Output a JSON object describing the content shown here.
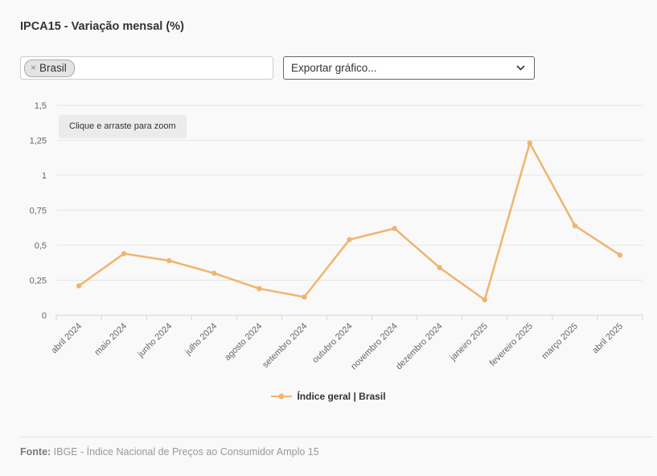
{
  "header": {
    "title": "IPCA15 - Variação mensal (%)"
  },
  "controls": {
    "territory_tag": {
      "label": "Brasil",
      "remove_symbol": "×"
    },
    "export_select": {
      "value": "Exportar gráfico..."
    }
  },
  "chart": {
    "zoom_hint": "Clique e arraste para zoom",
    "legend_label": "Índice geral | Brasil"
  },
  "chart_data": {
    "type": "line",
    "title": "IPCA15 - Variação mensal (%)",
    "categories": [
      "abril 2024",
      "maio 2024",
      "junho 2024",
      "julho 2024",
      "agosto 2024",
      "setembro 2024",
      "outubro 2024",
      "novembro 2024",
      "dezembro 2024",
      "janeiro 2025",
      "fevereiro 2025",
      "março 2025",
      "abril 2025"
    ],
    "series": [
      {
        "name": "Índice geral | Brasil",
        "values": [
          0.21,
          0.44,
          0.39,
          0.3,
          0.19,
          0.13,
          0.54,
          0.62,
          0.34,
          0.11,
          1.23,
          0.64,
          0.43
        ]
      }
    ],
    "xlabel": "",
    "ylabel": "",
    "ylim": [
      0,
      1.5
    ],
    "yticks": [
      0,
      0.25,
      0.5,
      0.75,
      1,
      1.25,
      1.5
    ],
    "ytick_labels": [
      "0",
      "0,25",
      "0,5",
      "0,75",
      "1",
      "1,25",
      "1,5"
    ],
    "grid": true,
    "legend_position": "bottom"
  },
  "colors": {
    "line": "#f0b46e",
    "grid": "#e6e6e6",
    "axis": "#ccd6eb",
    "tick_label": "#666666",
    "background": "#f9f9f9"
  },
  "footer": {
    "source_label": "Fonte:",
    "source_text": " IBGE - Índice Nacional de Preços ao Consumidor Amplo 15"
  }
}
